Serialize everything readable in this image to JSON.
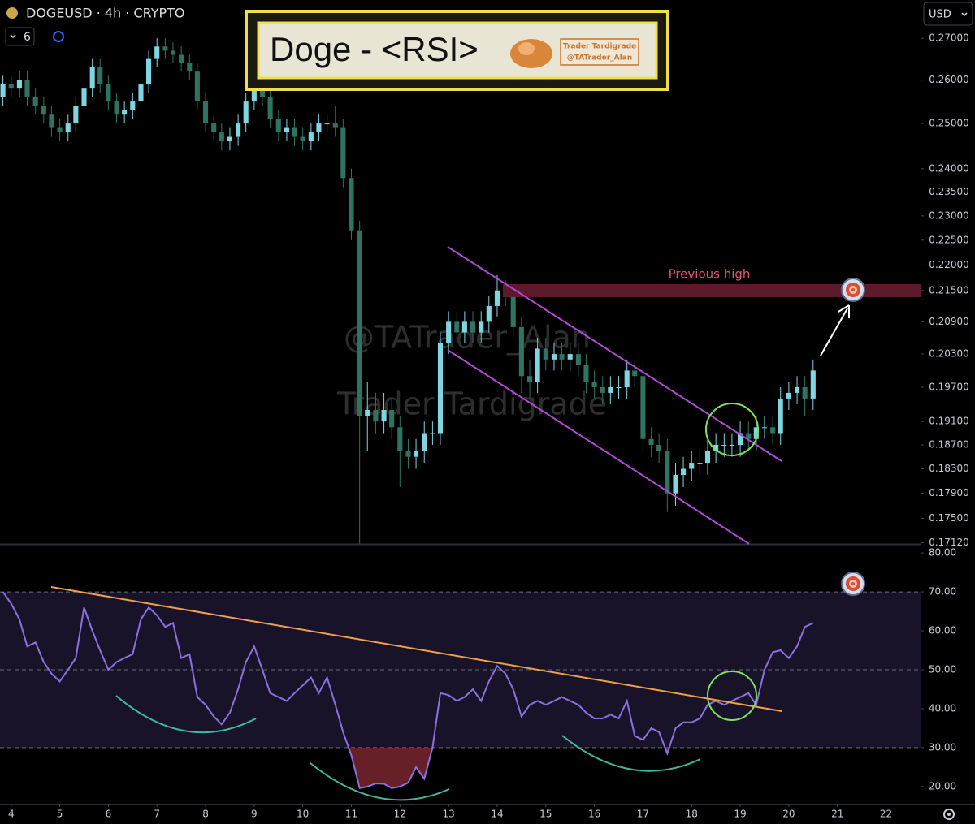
{
  "header": {
    "symbol": "DOGEUSD · 4h · CRYPTO",
    "interval_count": 6,
    "currency": "USD"
  },
  "overlay": {
    "title": "Doge - <RSI>",
    "brand": "Trader Tardigrade",
    "handle": "@TATrader_Alan"
  },
  "watermark": [
    "@TATrader_Alan",
    "Trader Tardigrade"
  ],
  "chart_data": [
    {
      "type": "candlestick",
      "annotation": "Previous high",
      "up_color": "#7fd6e0",
      "down_color": "#2f7463",
      "log_scale": true,
      "xlim": [
        3.77,
        22.71
      ],
      "ylim": [
        0.171,
        0.2795
      ],
      "yticks": [
        {
          "value": 0.27,
          "label": "0.27000"
        },
        {
          "value": 0.26,
          "label": "0.26000"
        },
        {
          "value": 0.25,
          "label": "0.25000"
        },
        {
          "value": 0.24,
          "label": "0.24000"
        },
        {
          "value": 0.235,
          "label": "0.23500"
        },
        {
          "value": 0.23,
          "label": "0.23000"
        },
        {
          "value": 0.225,
          "label": "0.22500"
        },
        {
          "value": 0.22,
          "label": "0.22000"
        },
        {
          "value": 0.215,
          "label": "0.21500"
        },
        {
          "value": 0.209,
          "label": "0.20900"
        },
        {
          "value": 0.203,
          "label": "0.20300"
        },
        {
          "value": 0.197,
          "label": "0.19700"
        },
        {
          "value": 0.191,
          "label": "0.19100"
        },
        {
          "value": 0.187,
          "label": "0.18700"
        },
        {
          "value": 0.183,
          "label": "0.18300"
        },
        {
          "value": 0.179,
          "label": "0.17900"
        },
        {
          "value": 0.175,
          "label": "0.17500"
        },
        {
          "value": 0.1712,
          "label": "0.17120"
        }
      ],
      "x": [
        3.83,
        4.0,
        4.17,
        4.33,
        4.5,
        4.67,
        4.83,
        5.0,
        5.17,
        5.33,
        5.5,
        5.67,
        5.83,
        6.0,
        6.17,
        6.33,
        6.5,
        6.67,
        6.83,
        7.0,
        7.17,
        7.33,
        7.5,
        7.67,
        7.83,
        8.0,
        8.17,
        8.33,
        8.5,
        8.67,
        8.83,
        9.0,
        9.17,
        9.33,
        9.5,
        9.67,
        9.83,
        10.0,
        10.17,
        10.33,
        10.5,
        10.67,
        10.83,
        11.0,
        11.17,
        11.33,
        11.5,
        11.67,
        11.83,
        12.0,
        12.17,
        12.33,
        12.5,
        12.67,
        12.83,
        13.0,
        13.17,
        13.33,
        13.5,
        13.67,
        13.83,
        14.0,
        14.17,
        14.33,
        14.5,
        14.67,
        14.83,
        15.0,
        15.17,
        15.33,
        15.5,
        15.67,
        15.83,
        16.0,
        16.17,
        16.33,
        16.5,
        16.67,
        16.83,
        17.0,
        17.17,
        17.33,
        17.5,
        17.67,
        17.83,
        18.0,
        18.17,
        18.33,
        18.5,
        18.67,
        18.83,
        19.0,
        19.17,
        19.33,
        19.5,
        19.67,
        19.83,
        20.0,
        20.17,
        20.33,
        20.5
      ],
      "open": [
        0.256,
        0.259,
        0.258,
        0.26,
        0.256,
        0.254,
        0.252,
        0.249,
        0.248,
        0.25,
        0.254,
        0.258,
        0.263,
        0.259,
        0.255,
        0.252,
        0.253,
        0.255,
        0.259,
        0.265,
        0.268,
        0.267,
        0.266,
        0.264,
        0.262,
        0.255,
        0.25,
        0.248,
        0.246,
        0.247,
        0.25,
        0.255,
        0.259,
        0.256,
        0.251,
        0.248,
        0.249,
        0.247,
        0.246,
        0.248,
        0.25,
        0.25,
        0.249,
        0.238,
        0.227,
        0.192,
        0.193,
        0.191,
        0.193,
        0.19,
        0.186,
        0.185,
        0.186,
        0.189,
        0.189,
        0.205,
        0.209,
        0.207,
        0.209,
        0.207,
        0.209,
        0.212,
        0.215,
        0.214,
        0.208,
        0.199,
        0.198,
        0.204,
        0.202,
        0.203,
        0.202,
        0.203,
        0.201,
        0.198,
        0.197,
        0.196,
        0.197,
        0.197,
        0.2,
        0.199,
        0.188,
        0.187,
        0.186,
        0.179,
        0.182,
        0.183,
        0.184,
        0.184,
        0.186,
        0.187,
        0.187,
        0.187,
        0.189,
        0.188,
        0.19,
        0.19,
        0.189,
        0.195,
        0.196,
        0.197,
        0.195
      ],
      "high": [
        0.261,
        0.261,
        0.262,
        0.262,
        0.258,
        0.256,
        0.254,
        0.251,
        0.252,
        0.256,
        0.26,
        0.265,
        0.265,
        0.261,
        0.257,
        0.255,
        0.257,
        0.261,
        0.267,
        0.27,
        0.27,
        0.269,
        0.268,
        0.266,
        0.264,
        0.257,
        0.252,
        0.25,
        0.249,
        0.252,
        0.257,
        0.261,
        0.261,
        0.258,
        0.253,
        0.251,
        0.251,
        0.249,
        0.25,
        0.252,
        0.252,
        0.254,
        0.251,
        0.24,
        0.229,
        0.198,
        0.196,
        0.196,
        0.195,
        0.192,
        0.188,
        0.188,
        0.191,
        0.191,
        0.207,
        0.211,
        0.211,
        0.211,
        0.211,
        0.211,
        0.214,
        0.218,
        0.217,
        0.216,
        0.21,
        0.202,
        0.206,
        0.206,
        0.205,
        0.205,
        0.205,
        0.205,
        0.203,
        0.2,
        0.199,
        0.199,
        0.199,
        0.202,
        0.202,
        0.201,
        0.19,
        0.189,
        0.188,
        0.184,
        0.185,
        0.186,
        0.186,
        0.188,
        0.189,
        0.189,
        0.189,
        0.191,
        0.191,
        0.192,
        0.192,
        0.192,
        0.197,
        0.198,
        0.199,
        0.199,
        0.202
      ],
      "low": [
        0.254,
        0.256,
        0.256,
        0.254,
        0.252,
        0.25,
        0.247,
        0.246,
        0.246,
        0.248,
        0.252,
        0.256,
        0.257,
        0.253,
        0.25,
        0.25,
        0.251,
        0.253,
        0.257,
        0.263,
        0.265,
        0.264,
        0.262,
        0.26,
        0.253,
        0.248,
        0.246,
        0.244,
        0.244,
        0.245,
        0.248,
        0.253,
        0.254,
        0.249,
        0.246,
        0.246,
        0.245,
        0.244,
        0.244,
        0.246,
        0.248,
        0.247,
        0.236,
        0.225,
        0.171,
        0.186,
        0.189,
        0.189,
        0.188,
        0.18,
        0.183,
        0.183,
        0.184,
        0.187,
        0.187,
        0.203,
        0.205,
        0.205,
        0.205,
        0.205,
        0.207,
        0.21,
        0.212,
        0.206,
        0.196,
        0.195,
        0.196,
        0.2,
        0.2,
        0.2,
        0.2,
        0.199,
        0.196,
        0.195,
        0.194,
        0.194,
        0.195,
        0.195,
        0.197,
        0.186,
        0.185,
        0.184,
        0.176,
        0.177,
        0.18,
        0.181,
        0.182,
        0.182,
        0.184,
        0.185,
        0.185,
        0.185,
        0.186,
        0.186,
        0.188,
        0.187,
        0.187,
        0.193,
        0.194,
        0.192,
        0.193
      ],
      "close": [
        0.259,
        0.258,
        0.26,
        0.256,
        0.254,
        0.252,
        0.249,
        0.248,
        0.25,
        0.254,
        0.258,
        0.263,
        0.259,
        0.255,
        0.252,
        0.253,
        0.255,
        0.259,
        0.265,
        0.268,
        0.267,
        0.266,
        0.264,
        0.262,
        0.255,
        0.25,
        0.248,
        0.246,
        0.247,
        0.25,
        0.255,
        0.259,
        0.256,
        0.251,
        0.248,
        0.249,
        0.247,
        0.246,
        0.248,
        0.25,
        0.25,
        0.249,
        0.238,
        0.227,
        0.192,
        0.193,
        0.191,
        0.193,
        0.19,
        0.186,
        0.185,
        0.186,
        0.189,
        0.189,
        0.205,
        0.209,
        0.207,
        0.209,
        0.207,
        0.209,
        0.212,
        0.215,
        0.214,
        0.208,
        0.199,
        0.198,
        0.204,
        0.202,
        0.203,
        0.202,
        0.203,
        0.201,
        0.198,
        0.197,
        0.196,
        0.197,
        0.197,
        0.2,
        0.199,
        0.188,
        0.187,
        0.186,
        0.179,
        0.182,
        0.183,
        0.184,
        0.184,
        0.186,
        0.187,
        0.187,
        0.187,
        0.189,
        0.188,
        0.19,
        0.19,
        0.189,
        0.195,
        0.196,
        0.197,
        0.195,
        0.2
      ]
    },
    {
      "type": "line",
      "color": "#8c6fe0",
      "band_color": "#2a1f45",
      "oversold_color": "#8a2a35",
      "levels": [
        30,
        50,
        70
      ],
      "xlim": [
        3.77,
        22.71
      ],
      "xticks": [
        4,
        5,
        6,
        7,
        8,
        9,
        10,
        11,
        12,
        13,
        14,
        15,
        16,
        17,
        18,
        19,
        20,
        21,
        22
      ],
      "ylim": [
        15.6,
        81.9
      ],
      "yticks": [
        {
          "value": 80,
          "label": "80.00"
        },
        {
          "value": 70,
          "label": "70.00"
        },
        {
          "value": 60,
          "label": "60.00"
        },
        {
          "value": 50,
          "label": "50.00"
        },
        {
          "value": 40,
          "label": "40.00"
        },
        {
          "value": 30,
          "label": "30.00"
        },
        {
          "value": 20,
          "label": "20.00"
        }
      ],
      "values": [
        70,
        67,
        63,
        56,
        57,
        52,
        49,
        47,
        50,
        53,
        66,
        60,
        55,
        50,
        52,
        53,
        54,
        63,
        66,
        64,
        61,
        62,
        53,
        54,
        43,
        41,
        38,
        36,
        39,
        45,
        52,
        56,
        50,
        44,
        43,
        42,
        44,
        46,
        48,
        44,
        48,
        41,
        34,
        28,
        19.6,
        20,
        20.8,
        20.7,
        19.6,
        20,
        21,
        25,
        22,
        30,
        44,
        43.5,
        42,
        43,
        45,
        42,
        47,
        51,
        49,
        45,
        38,
        41,
        42,
        41,
        42,
        43,
        42,
        41,
        39,
        37.5,
        37.5,
        38.5,
        37.5,
        42,
        33,
        32,
        35,
        34,
        28.5,
        35,
        36.5,
        36.5,
        37.5,
        41,
        42,
        41,
        42,
        43,
        44,
        41,
        50,
        54.5,
        55,
        53,
        56,
        61,
        62
      ]
    }
  ]
}
